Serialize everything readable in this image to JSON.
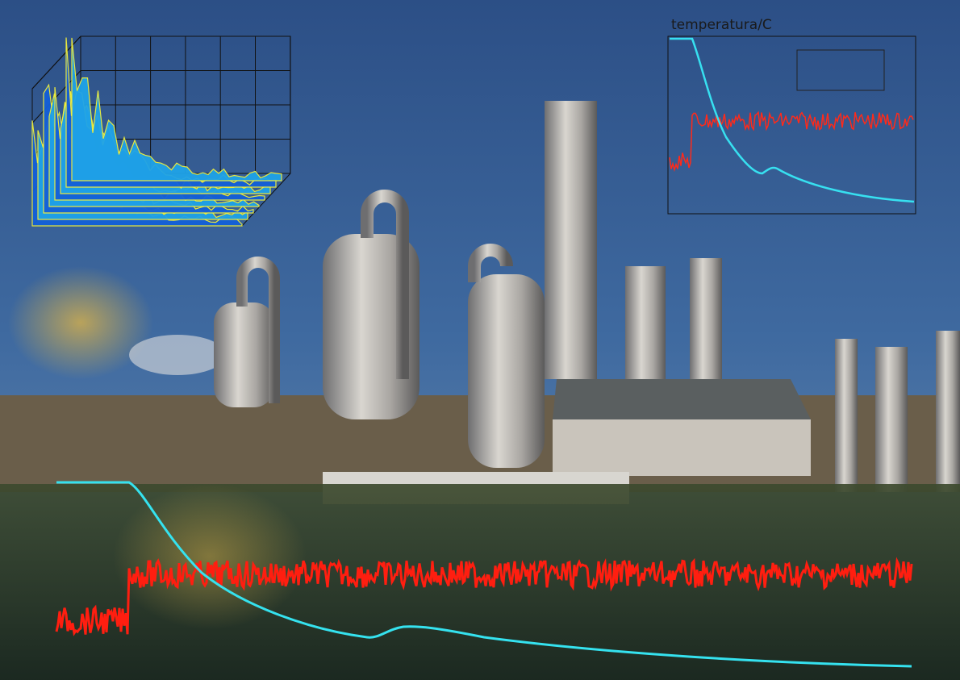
{
  "overlay": {
    "title": "temperatura/C"
  }
}
